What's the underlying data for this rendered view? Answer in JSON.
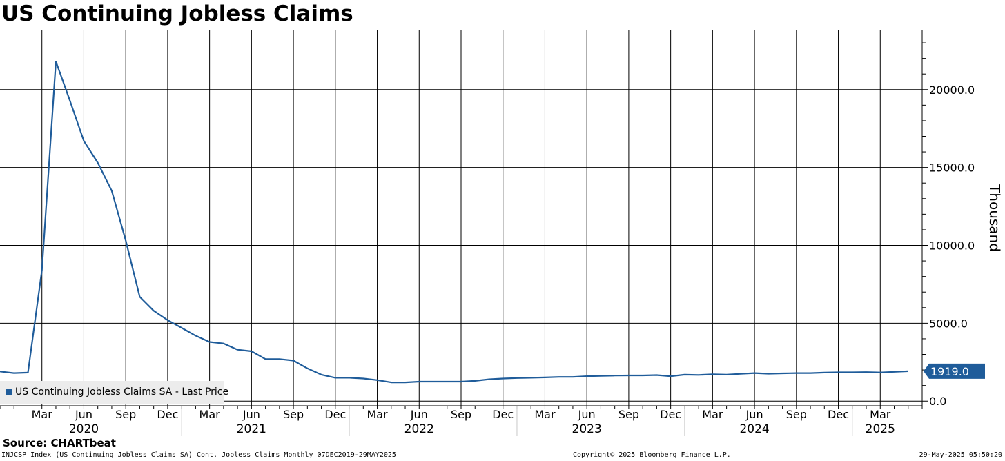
{
  "chart_data": {
    "type": "line",
    "title": "US Continuing Jobless Claims",
    "ylabel": "Thousand",
    "ylim": [
      -300,
      23800
    ],
    "yticks": [
      0,
      5000,
      10000,
      15000,
      20000
    ],
    "ytick_labels": [
      "0.0",
      "5000.0",
      "10000.0",
      "15000.0",
      "20000.0"
    ],
    "x_start": "2019-12",
    "x_end": "2025-06",
    "month_ticks": [
      {
        "date": "2020-03",
        "label": "Mar"
      },
      {
        "date": "2020-06",
        "label": "Jun"
      },
      {
        "date": "2020-09",
        "label": "Sep"
      },
      {
        "date": "2020-12",
        "label": "Dec"
      },
      {
        "date": "2021-03",
        "label": "Mar"
      },
      {
        "date": "2021-06",
        "label": "Jun"
      },
      {
        "date": "2021-09",
        "label": "Sep"
      },
      {
        "date": "2021-12",
        "label": "Dec"
      },
      {
        "date": "2022-03",
        "label": "Mar"
      },
      {
        "date": "2022-06",
        "label": "Jun"
      },
      {
        "date": "2022-09",
        "label": "Sep"
      },
      {
        "date": "2022-12",
        "label": "Dec"
      },
      {
        "date": "2023-03",
        "label": "Mar"
      },
      {
        "date": "2023-06",
        "label": "Jun"
      },
      {
        "date": "2023-09",
        "label": "Sep"
      },
      {
        "date": "2023-12",
        "label": "Dec"
      },
      {
        "date": "2024-03",
        "label": "Mar"
      },
      {
        "date": "2024-06",
        "label": "Jun"
      },
      {
        "date": "2024-09",
        "label": "Sep"
      },
      {
        "date": "2024-12",
        "label": "Dec"
      },
      {
        "date": "2025-03",
        "label": "Mar"
      }
    ],
    "year_labels": [
      {
        "date": "2020-06",
        "label": "2020"
      },
      {
        "date": "2021-06",
        "label": "2021"
      },
      {
        "date": "2022-06",
        "label": "2022"
      },
      {
        "date": "2023-06",
        "label": "2023"
      },
      {
        "date": "2024-06",
        "label": "2024"
      },
      {
        "date": "2025-03",
        "label": "2025"
      }
    ],
    "year_dividers": [
      "2021-01",
      "2022-01",
      "2023-01",
      "2024-01",
      "2025-01"
    ],
    "grid": true,
    "legend_position": "bottom-left",
    "series": [
      {
        "name": "US Continuing Jobless Claims SA - Last Price",
        "color": "#1f5c9a",
        "x": [
          "2019-12",
          "2020-01",
          "2020-02",
          "2020-03",
          "2020-04",
          "2020-05",
          "2020-06",
          "2020-07",
          "2020-08",
          "2020-09",
          "2020-10",
          "2020-11",
          "2020-12",
          "2021-01",
          "2021-02",
          "2021-03",
          "2021-04",
          "2021-05",
          "2021-06",
          "2021-07",
          "2021-08",
          "2021-09",
          "2021-10",
          "2021-11",
          "2021-12",
          "2022-01",
          "2022-02",
          "2022-03",
          "2022-04",
          "2022-05",
          "2022-06",
          "2022-07",
          "2022-08",
          "2022-09",
          "2022-10",
          "2022-11",
          "2022-12",
          "2023-01",
          "2023-02",
          "2023-03",
          "2023-04",
          "2023-05",
          "2023-06",
          "2023-07",
          "2023-08",
          "2023-09",
          "2023-10",
          "2023-11",
          "2023-12",
          "2024-01",
          "2024-02",
          "2024-03",
          "2024-04",
          "2024-05",
          "2024-06",
          "2024-07",
          "2024-08",
          "2024-09",
          "2024-10",
          "2024-11",
          "2024-12",
          "2025-01",
          "2025-02",
          "2025-03",
          "2025-04",
          "2025-05"
        ],
        "y": [
          1900,
          1800,
          1830,
          8400,
          21800,
          19300,
          16700,
          15300,
          13500,
          10300,
          6700,
          5800,
          5200,
          4700,
          4200,
          3800,
          3700,
          3300,
          3200,
          2700,
          2700,
          2600,
          2100,
          1700,
          1500,
          1500,
          1450,
          1350,
          1200,
          1200,
          1250,
          1250,
          1250,
          1250,
          1300,
          1400,
          1450,
          1480,
          1500,
          1520,
          1550,
          1550,
          1600,
          1620,
          1640,
          1650,
          1650,
          1670,
          1600,
          1700,
          1680,
          1720,
          1700,
          1750,
          1800,
          1760,
          1780,
          1800,
          1800,
          1830,
          1850,
          1850,
          1860,
          1840,
          1880,
          1919
        ]
      }
    ],
    "last_value_label": "1919.0",
    "source": "Source: CHARTbeat",
    "footer_left": "INJCSP Index (US Continuing Jobless Claims SA) Cont. Jobless Claims  Monthly 07DEC2019-29MAY2025",
    "footer_mid": "Copyright© 2025 Bloomberg Finance L.P.",
    "footer_right": "29-May-2025 05:50:20"
  }
}
